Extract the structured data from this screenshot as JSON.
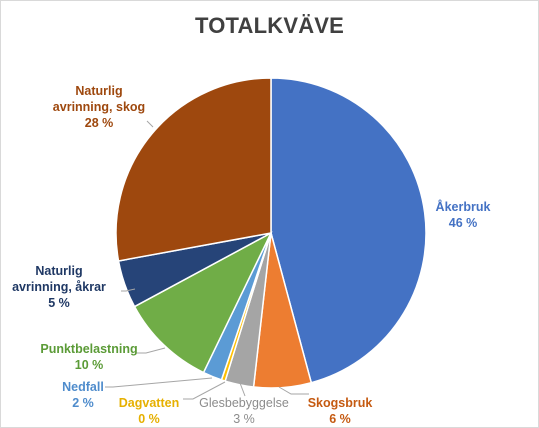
{
  "chart_data": {
    "type": "pie",
    "title": "TOTALKVÄVE",
    "slices": [
      {
        "name": "Åkerbruk",
        "value": 46,
        "label": "46 %",
        "color": "#4472c4"
      },
      {
        "name": "Skogsbruk",
        "value": 6,
        "label": "6 %",
        "color": "#ed7d31"
      },
      {
        "name": "Glesbebyggelse",
        "value": 3,
        "label": "3 %",
        "color": "#a5a5a5"
      },
      {
        "name": "Dagvatten",
        "value": 0.4,
        "label": "0 %",
        "color": "#ffc000"
      },
      {
        "name": "Nedfall",
        "value": 2,
        "label": "2 %",
        "color": "#5b9bd5"
      },
      {
        "name": "Punktbelastning",
        "value": 10,
        "label": "10 %",
        "color": "#70ad47"
      },
      {
        "name": "Naturlig avrinning, åkrar",
        "value": 5,
        "label": "5 %",
        "color": "#264478"
      },
      {
        "name": "Naturlig avrinning, skog",
        "value": 28,
        "label": "28 %",
        "color": "#9e480e"
      }
    ],
    "legend": "none",
    "label_colors": {
      "Åkerbruk": "#4472c4",
      "Skogsbruk": "#c55a11",
      "Glesbebyggelse": "#8c8c8c",
      "Dagvatten": "#e6b000",
      "Nedfall": "#4f8ccc",
      "Punktbelastning": "#5b9b37",
      "Naturlig avrinning, åkrar": "#1f3864",
      "Naturlig avrinning, skog": "#9e480e"
    }
  }
}
